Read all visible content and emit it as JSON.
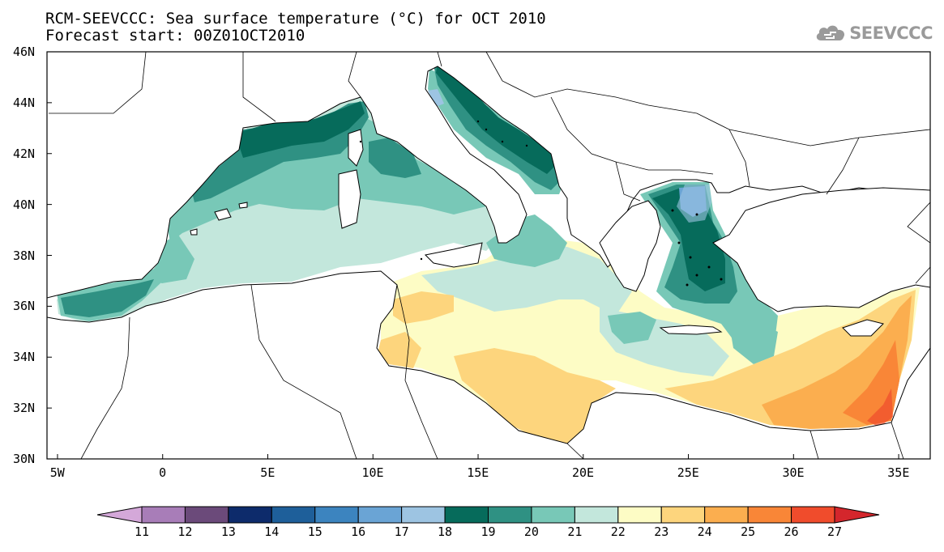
{
  "title": {
    "line1": "RCM-SEEVCCC: Sea surface temperature (°C) for OCT 2010",
    "line2": "Forecast start: 00Z01OCT2010"
  },
  "logo": {
    "text": "SEEVCCC",
    "icon": "cloud-icon"
  },
  "map": {
    "variable": "Sea surface temperature",
    "unit": "°C",
    "period": "OCT 2010",
    "lon_range": [
      -5.5,
      36.5
    ],
    "lat_range": [
      30,
      46
    ],
    "land_color": "#ffffff",
    "coastline_color": "#000000"
  },
  "axes": {
    "x_ticks": [
      "5W",
      "0",
      "5E",
      "10E",
      "15E",
      "20E",
      "25E",
      "30E",
      "35E"
    ],
    "y_ticks": [
      "46N",
      "44N",
      "42N",
      "40N",
      "38N",
      "36N",
      "34N",
      "32N",
      "30N"
    ]
  },
  "colorbar": {
    "labels": [
      "11",
      "12",
      "13",
      "14",
      "15",
      "16",
      "17",
      "18",
      "19",
      "20",
      "21",
      "22",
      "23",
      "24",
      "25",
      "26",
      "27"
    ],
    "colors": [
      "#d4a8d9",
      "#a87db8",
      "#6b4a7a",
      "#0d2b6b",
      "#1e5f9a",
      "#3c84bf",
      "#6aa4d5",
      "#9dc4e2",
      "#066b5b",
      "#2f9183",
      "#78c8b7",
      "#c3e7dc",
      "#fdfcc5",
      "#fdd57d",
      "#fbae4f",
      "#f98637",
      "#f04c2c",
      "#d4262c"
    ]
  }
}
